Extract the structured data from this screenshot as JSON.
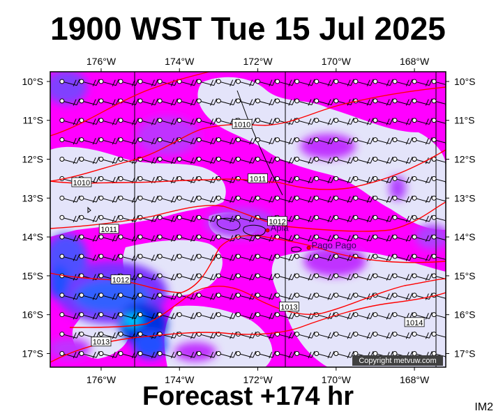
{
  "title": "1900 WST Tue 15 Jul 2025",
  "subtitle": "Forecast +174 hr",
  "product_code": "IM2",
  "copyright": "Copyright metvuw.com",
  "map": {
    "lon_range": [
      -177.3,
      -167.2
    ],
    "lat_range": [
      -17.35,
      -9.75
    ],
    "lon_labels": [
      "176°W",
      "174°W",
      "172°W",
      "170°W",
      "168°W"
    ],
    "lat_labels": [
      "10°S",
      "11°S",
      "12°S",
      "13°S",
      "14°S",
      "15°S",
      "16°S",
      "17°S"
    ],
    "colors": {
      "background_light": "#e4e4fa",
      "magenta": "#ff00ff",
      "violet": "#b040ff",
      "purple": "#7a30ff",
      "blue": "#3060ff",
      "deep_blue": "#0030e0",
      "cyan": "#00c8ff",
      "isobar": "#ff0000"
    }
  },
  "places": [
    {
      "name": "Apia",
      "lon": -171.75,
      "lat": -13.83
    },
    {
      "name": "Pago Pago",
      "lon": -170.7,
      "lat": -14.28
    }
  ],
  "isobars": [
    {
      "label": "1010",
      "lon": -172.4,
      "lat": -11.1
    },
    {
      "label": "1010",
      "lon": -176.5,
      "lat": -12.6
    },
    {
      "label": "1011",
      "lon": -172.0,
      "lat": -12.5
    },
    {
      "label": "1011",
      "lon": -175.8,
      "lat": -13.8
    },
    {
      "label": "1012",
      "lon": -171.5,
      "lat": -13.6
    },
    {
      "label": "1012",
      "lon": -175.5,
      "lat": -15.1
    },
    {
      "label": "1013",
      "lon": -171.2,
      "lat": -15.8
    },
    {
      "label": "1013",
      "lon": -176.0,
      "lat": -16.7
    },
    {
      "label": "1014",
      "lon": -168.0,
      "lat": -16.2
    }
  ]
}
